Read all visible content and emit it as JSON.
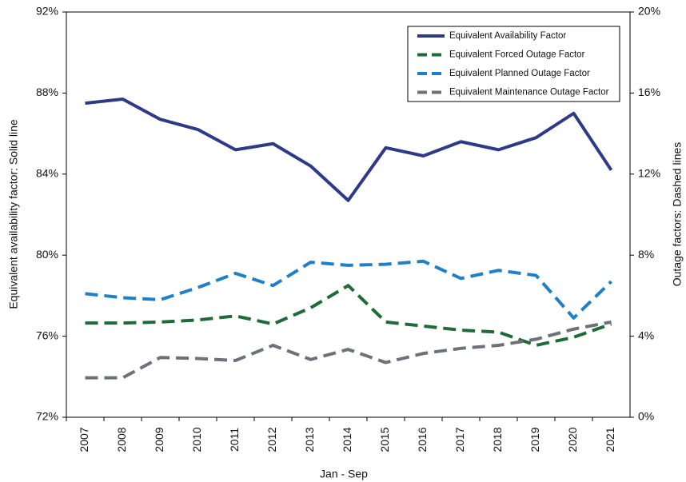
{
  "chart_data": {
    "type": "line",
    "x_title": "Jan - Sep",
    "y_title": "Equivalent availability factor: Solid line",
    "y2_title": "Outage factors: Dashed lines",
    "categories": [
      "2007",
      "2008",
      "2009",
      "2010",
      "2011",
      "2012",
      "2013",
      "2014",
      "2015",
      "2016",
      "2017",
      "2018",
      "2019",
      "2020",
      "2021"
    ],
    "ylim": [
      72,
      92
    ],
    "yticks": [
      {
        "value": 72,
        "label": "72%"
      },
      {
        "value": 76,
        "label": "76%"
      },
      {
        "value": 80,
        "label": "80%"
      },
      {
        "value": 84,
        "label": "84%"
      },
      {
        "value": 88,
        "label": "88%"
      },
      {
        "value": 92,
        "label": "92%"
      }
    ],
    "y2lim": [
      0,
      20
    ],
    "y2ticks": [
      {
        "value": 0,
        "label": "0%"
      },
      {
        "value": 4,
        "label": "4%"
      },
      {
        "value": 8,
        "label": "8%"
      },
      {
        "value": 12,
        "label": "12%"
      },
      {
        "value": 16,
        "label": "16%"
      },
      {
        "value": 20,
        "label": "20%"
      }
    ],
    "legend": "upper right",
    "series": [
      {
        "name": "Equivalent Availability Factor",
        "color": "#2e3a87",
        "dashed": false,
        "values": [
          87.5,
          87.7,
          86.7,
          86.2,
          85.2,
          85.5,
          84.4,
          82.7,
          85.3,
          84.9,
          85.6,
          85.2,
          85.8,
          87.0,
          84.2
        ]
      },
      {
        "name": "Equivalent Forced Outage Factor",
        "color": "#1e6b38",
        "dashed": true,
        "axis": "y2",
        "values": [
          4.65,
          4.65,
          4.7,
          4.8,
          5.0,
          4.6,
          5.4,
          6.5,
          4.7,
          4.5,
          4.3,
          4.2,
          3.55,
          3.95,
          4.6
        ]
      },
      {
        "name": "Equivalent Planned Outage Factor",
        "color": "#1f80c8",
        "dashed": true,
        "axis": "y2",
        "values": [
          6.1,
          5.9,
          5.8,
          6.4,
          7.1,
          6.5,
          7.65,
          7.5,
          7.55,
          7.7,
          6.85,
          7.25,
          7.0,
          4.9,
          6.7
        ]
      },
      {
        "name": "Equivalent Maintenance Outage Factor",
        "color": "#6e7179",
        "dashed": true,
        "axis": "y2",
        "values": [
          1.95,
          1.95,
          2.95,
          2.9,
          2.8,
          3.55,
          2.85,
          3.35,
          2.7,
          3.15,
          3.4,
          3.55,
          3.85,
          4.35,
          4.7
        ]
      }
    ]
  }
}
